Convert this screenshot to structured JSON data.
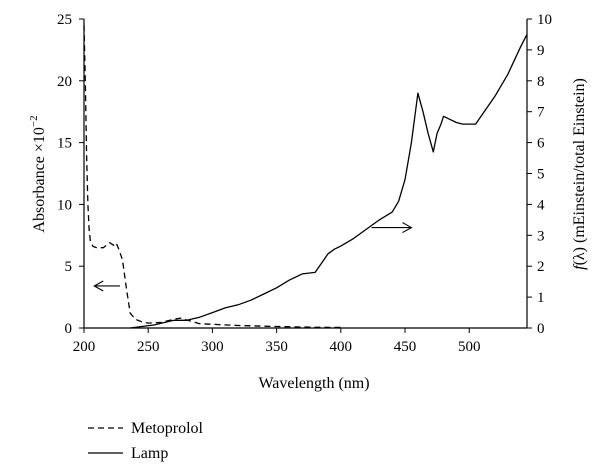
{
  "chart_data": {
    "type": "line",
    "x_axis": {
      "label": "Wavelength (nm)",
      "range": [
        200,
        545
      ],
      "ticks": [
        200,
        250,
        300,
        350,
        400,
        450,
        500
      ],
      "tick_labels": [
        "200",
        "250",
        "300",
        "350",
        "400",
        "450",
        "500"
      ]
    },
    "y_axis_left": {
      "label_prefix": "Absorbance ×10",
      "label_exponent": "−2",
      "range": [
        0,
        25
      ],
      "ticks": [
        0,
        5,
        10,
        15,
        20,
        25
      ],
      "tick_labels": [
        "0",
        "5",
        "10",
        "15",
        "20",
        "25"
      ]
    },
    "y_axis_right": {
      "label_f": "f",
      "label_rest": "(λ) (mEinstein/total Einstein)",
      "range": [
        0,
        10
      ],
      "ticks": [
        0,
        1,
        2,
        3,
        4,
        5,
        6,
        7,
        8,
        9,
        10
      ],
      "tick_labels": [
        "0",
        "1",
        "2",
        "3",
        "4",
        "5",
        "6",
        "7",
        "8",
        "9",
        "10"
      ]
    },
    "series": [
      {
        "name": "Metoprolol",
        "axis": "left",
        "style": "dashed",
        "x": [
          200,
          201,
          202,
          203,
          204,
          205,
          207,
          210,
          215,
          220,
          223,
          225,
          227,
          230,
          233,
          236,
          240,
          245,
          250,
          260,
          270,
          275,
          280,
          285,
          290,
          300,
          320,
          350,
          380,
          400
        ],
        "y": [
          24.5,
          20,
          14,
          10,
          8,
          7,
          6.6,
          6.5,
          6.5,
          6.9,
          6.7,
          6.9,
          6.4,
          5.5,
          3.2,
          1.2,
          0.7,
          0.5,
          0.4,
          0.45,
          0.7,
          0.8,
          0.65,
          0.5,
          0.35,
          0.3,
          0.2,
          0.12,
          0.06,
          0.05
        ]
      },
      {
        "name": "Lamp",
        "axis": "right",
        "style": "solid",
        "x": [
          236,
          245,
          255,
          265,
          270,
          280,
          290,
          300,
          310,
          320,
          330,
          340,
          350,
          360,
          370,
          380,
          385,
          390,
          395,
          400,
          410,
          420,
          430,
          440,
          445,
          450,
          455,
          460,
          464,
          468,
          472,
          475,
          478,
          480,
          485,
          490,
          495,
          500,
          505,
          510,
          520,
          530,
          540,
          545
        ],
        "y": [
          0.0,
          0.05,
          0.1,
          0.2,
          0.25,
          0.25,
          0.35,
          0.5,
          0.65,
          0.75,
          0.9,
          1.1,
          1.3,
          1.55,
          1.75,
          1.8,
          2.1,
          2.4,
          2.55,
          2.65,
          2.9,
          3.2,
          3.5,
          3.75,
          4.1,
          4.8,
          6.0,
          7.6,
          7.0,
          6.3,
          5.7,
          6.3,
          6.6,
          6.85,
          6.75,
          6.65,
          6.6,
          6.6,
          6.6,
          6.9,
          7.5,
          8.2,
          9.1,
          9.5
        ]
      }
    ],
    "annotations": [
      {
        "type": "arrow",
        "points_to": "left-axis",
        "x": [
          228,
          208
        ],
        "y_left": [
          3.4,
          3.4
        ]
      },
      {
        "type": "arrow",
        "points_to": "right-axis",
        "x": [
          424,
          455
        ],
        "y_right": [
          3.25,
          3.25
        ]
      }
    ],
    "legend": {
      "placement": "bottom-left",
      "entries": [
        {
          "name": "Metoprolol",
          "style": "dashed"
        },
        {
          "name": "Lamp",
          "style": "solid"
        }
      ]
    },
    "grid": false
  }
}
